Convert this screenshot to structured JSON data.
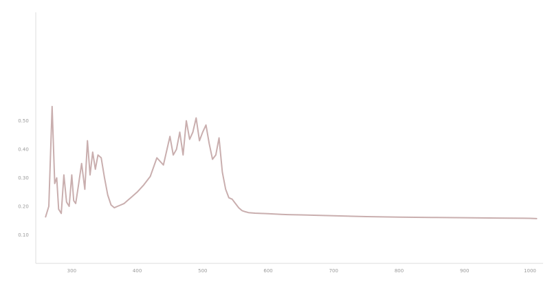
{
  "chart_data": {
    "type": "line",
    "title": "",
    "xlabel": "",
    "ylabel": "",
    "xlim": [
      245,
      1020
    ],
    "ylim": [
      0,
      0.88
    ],
    "x_ticks": [
      300,
      400,
      500,
      600,
      700,
      800,
      900,
      1000
    ],
    "x_tick_labels": [
      "300",
      "400",
      "500",
      "600",
      "700",
      "800",
      "900",
      "1000"
    ],
    "y_ticks": [
      0.1,
      0.2,
      0.3,
      0.4,
      0.5
    ],
    "y_tick_labels": [
      "0.10",
      "0.20",
      "0.30",
      "0.40",
      "0.50"
    ],
    "grid": false,
    "legend": "none",
    "series": [
      {
        "color": "#c9aeae",
        "x": [
          260,
          265,
          270,
          274,
          277,
          280,
          284,
          288,
          292,
          296,
          300,
          303,
          306,
          310,
          315,
          320,
          324,
          328,
          332,
          336,
          340,
          345,
          350,
          355,
          360,
          365,
          370,
          375,
          380,
          385,
          390,
          395,
          400,
          410,
          420,
          430,
          440,
          450,
          455,
          460,
          465,
          470,
          475,
          480,
          485,
          490,
          495,
          500,
          505,
          510,
          515,
          520,
          525,
          530,
          535,
          540,
          545,
          550,
          555,
          560,
          565,
          570,
          575,
          580,
          590,
          600,
          610,
          620,
          630,
          650,
          700,
          750,
          800,
          850,
          900,
          950,
          1000,
          1010
        ],
        "y": [
          0.163,
          0.2,
          0.55,
          0.28,
          0.3,
          0.19,
          0.175,
          0.31,
          0.215,
          0.2,
          0.31,
          0.22,
          0.21,
          0.27,
          0.35,
          0.26,
          0.43,
          0.31,
          0.39,
          0.33,
          0.38,
          0.37,
          0.3,
          0.24,
          0.205,
          0.195,
          0.2,
          0.205,
          0.21,
          0.22,
          0.23,
          0.24,
          0.25,
          0.275,
          0.305,
          0.37,
          0.345,
          0.445,
          0.38,
          0.4,
          0.46,
          0.38,
          0.5,
          0.435,
          0.46,
          0.51,
          0.43,
          0.46,
          0.485,
          0.42,
          0.365,
          0.38,
          0.44,
          0.32,
          0.26,
          0.23,
          0.225,
          0.21,
          0.195,
          0.185,
          0.181,
          0.178,
          0.177,
          0.176,
          0.175,
          0.174,
          0.173,
          0.172,
          0.171,
          0.17,
          0.167,
          0.164,
          0.162,
          0.161,
          0.16,
          0.159,
          0.158,
          0.157
        ]
      }
    ]
  }
}
